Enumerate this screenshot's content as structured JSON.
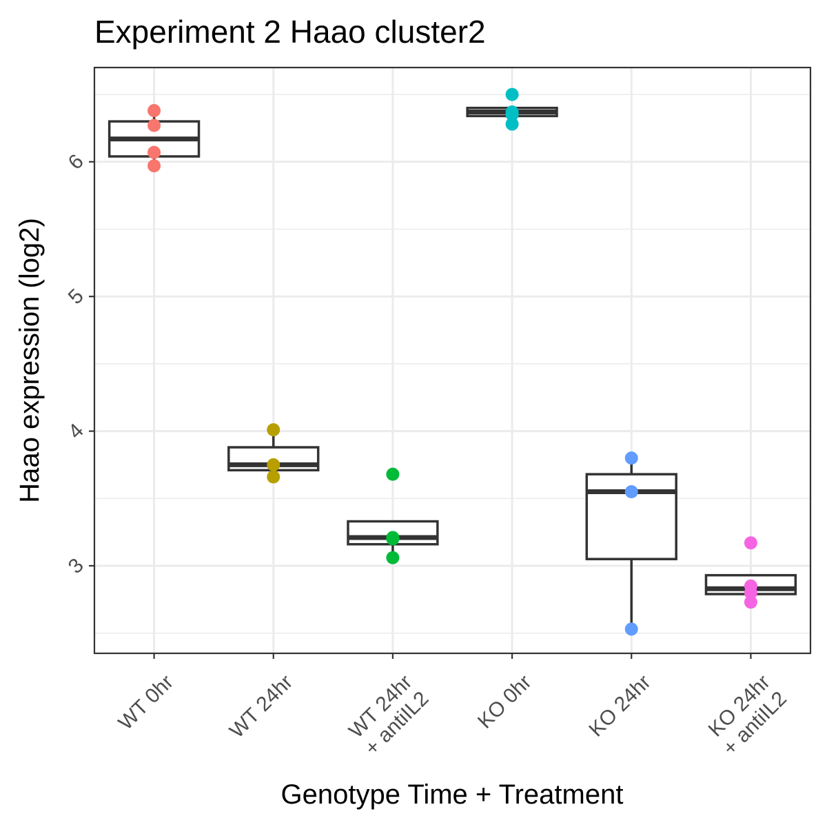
{
  "chart_data": {
    "type": "box",
    "title": "Experiment 2 Haao cluster2",
    "xlabel": "Genotype Time + Treatment",
    "ylabel": "Haao expression (log2)",
    "ylim": [
      2.35,
      6.7
    ],
    "y_ticks": [
      "3",
      "4",
      "5",
      "6"
    ],
    "grid": true,
    "legend": "none",
    "categories": [
      {
        "lines": [
          "WT 0hr"
        ],
        "color": "#F8766D",
        "box": {
          "lower_whisker": 5.96,
          "q1": 6.04,
          "median": 6.17,
          "q3": 6.3,
          "upper_whisker": 6.38
        },
        "points": [
          6.38,
          6.27,
          6.07,
          5.97
        ]
      },
      {
        "lines": [
          "WT 24hr"
        ],
        "color": "#B79F00",
        "box": {
          "lower_whisker": 3.66,
          "q1": 3.71,
          "median": 3.75,
          "q3": 3.88,
          "upper_whisker": 4.01
        },
        "points": [
          4.01,
          3.75,
          3.66
        ]
      },
      {
        "lines": [
          "WT 24hr",
          "+ antiIL2"
        ],
        "color": "#00BA38",
        "box": {
          "lower_whisker": 3.06,
          "q1": 3.16,
          "median": 3.21,
          "q3": 3.33,
          "upper_whisker": 3.33
        },
        "points": [
          3.68,
          3.21,
          3.2,
          3.06
        ]
      },
      {
        "lines": [
          "KO 0hr"
        ],
        "color": "#00BFC4",
        "box": {
          "lower_whisker": 6.28,
          "q1": 6.34,
          "median": 6.37,
          "q3": 6.4,
          "upper_whisker": 6.4
        },
        "points": [
          6.5,
          6.37,
          6.35,
          6.28
        ]
      },
      {
        "lines": [
          "KO 24hr"
        ],
        "color": "#619CFF",
        "box": {
          "lower_whisker": 2.53,
          "q1": 3.05,
          "median": 3.55,
          "q3": 3.68,
          "upper_whisker": 3.8
        },
        "points": [
          3.8,
          3.55,
          2.53
        ]
      },
      {
        "lines": [
          "KO 24hr",
          "+ antiIL2"
        ],
        "color": "#F564E3",
        "box": {
          "lower_whisker": 2.73,
          "q1": 2.79,
          "median": 2.83,
          "q3": 2.93,
          "upper_whisker": 2.93
        },
        "points": [
          3.17,
          2.85,
          2.8,
          2.73
        ]
      }
    ]
  }
}
